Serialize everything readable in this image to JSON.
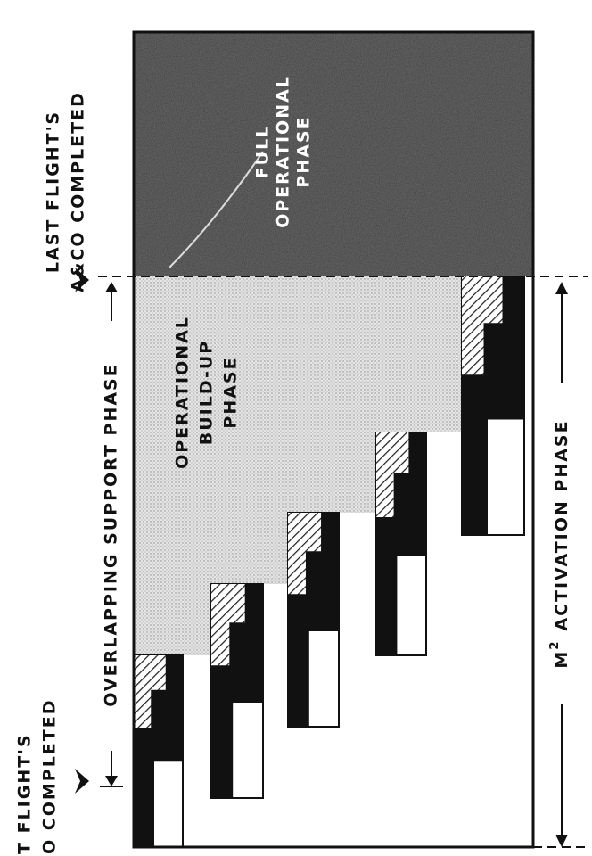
{
  "annotations": {
    "last_flight": [
      "LAST FLIGHT'S",
      "A&CO COMPLETED"
    ],
    "first_flight": [
      "T FLIGHT'S",
      "O COMPLETED"
    ],
    "overlapping_support": "OVERLAPPING SUPPORT PHASE",
    "full_operational": [
      "FULL",
      "OPERATIONAL",
      "PHASE"
    ],
    "buildup": [
      "OPERATIONAL",
      "BUILD-UP",
      "PHASE"
    ],
    "activation": {
      "prefix": "M",
      "superscript": "2",
      "text": "ACTIVATION PHASE"
    }
  }
}
